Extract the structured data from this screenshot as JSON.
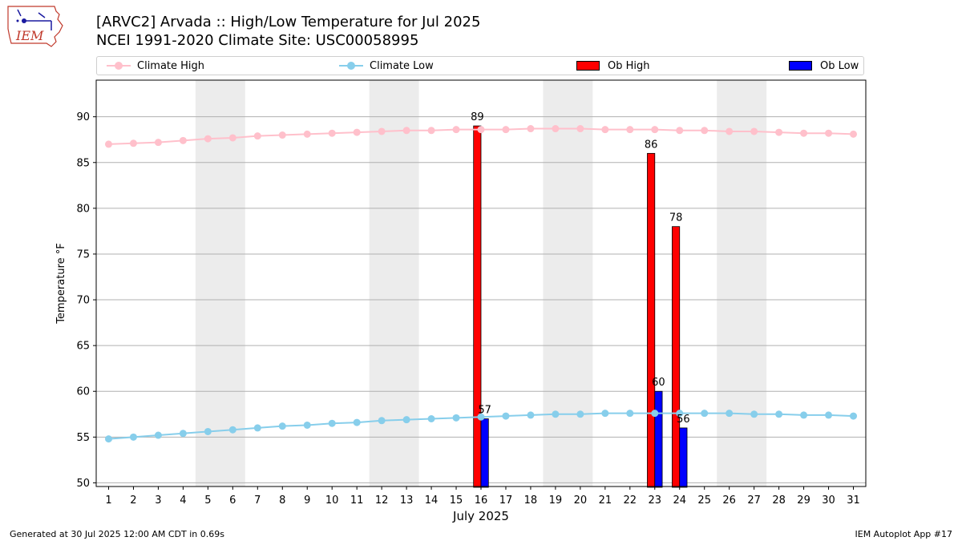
{
  "header": {
    "title_line1": "[ARVC2] Arvada :: High/Low Temperature for Jul 2025",
    "title_line2": "NCEI 1991-2020 Climate Site: USC00058995",
    "logo_text": "IEM"
  },
  "footer": {
    "left": "Generated at 30 Jul 2025 12:00 AM CDT in 0.69s",
    "right": "IEM Autoplot App #17"
  },
  "colors": {
    "climate_high": "#ffc0cb",
    "climate_low": "#87ceeb",
    "ob_high": "#ff0000",
    "ob_low": "#0000ff",
    "weekend_band": "#ececec",
    "grid": "#b0b0b0"
  },
  "chart_data": {
    "type": "bar",
    "xlabel": "July 2025",
    "ylabel": "Temperature °F",
    "xlim": [
      0.5,
      31.5
    ],
    "ylim": [
      49.6,
      94
    ],
    "x": [
      1,
      2,
      3,
      4,
      5,
      6,
      7,
      8,
      9,
      10,
      11,
      12,
      13,
      14,
      15,
      16,
      17,
      18,
      19,
      20,
      21,
      22,
      23,
      24,
      25,
      26,
      27,
      28,
      29,
      30,
      31
    ],
    "x_ticks": [
      "1",
      "2",
      "3",
      "4",
      "5",
      "6",
      "7",
      "8",
      "9",
      "10",
      "11",
      "12",
      "13",
      "14",
      "15",
      "16",
      "17",
      "18",
      "19",
      "20",
      "21",
      "22",
      "23",
      "24",
      "25",
      "26",
      "27",
      "28",
      "29",
      "30",
      "31"
    ],
    "y_ticks": [
      50,
      55,
      60,
      65,
      70,
      75,
      80,
      85,
      90
    ],
    "grid": "horizontal",
    "legend_position": "top",
    "weekend_bands": [
      [
        5,
        6
      ],
      [
        12,
        13
      ],
      [
        19,
        20
      ],
      [
        26,
        27
      ]
    ],
    "series": [
      {
        "name": "Climate High",
        "kind": "line",
        "values": [
          87.0,
          87.1,
          87.2,
          87.4,
          87.6,
          87.7,
          87.9,
          88.0,
          88.1,
          88.2,
          88.3,
          88.4,
          88.5,
          88.5,
          88.6,
          88.6,
          88.6,
          88.7,
          88.7,
          88.7,
          88.6,
          88.6,
          88.6,
          88.5,
          88.5,
          88.4,
          88.4,
          88.3,
          88.2,
          88.2,
          88.1
        ]
      },
      {
        "name": "Climate Low",
        "kind": "line",
        "values": [
          54.8,
          55.0,
          55.2,
          55.4,
          55.6,
          55.8,
          56.0,
          56.2,
          56.3,
          56.5,
          56.6,
          56.8,
          56.9,
          57.0,
          57.1,
          57.2,
          57.3,
          57.4,
          57.5,
          57.5,
          57.6,
          57.6,
          57.6,
          57.6,
          57.6,
          57.6,
          57.5,
          57.5,
          57.4,
          57.4,
          57.3
        ]
      },
      {
        "name": "Ob High",
        "kind": "bar",
        "points": [
          {
            "x": 16,
            "y": 89
          },
          {
            "x": 23,
            "y": 86
          },
          {
            "x": 24,
            "y": 78
          }
        ]
      },
      {
        "name": "Ob Low",
        "kind": "bar",
        "points": [
          {
            "x": 16,
            "y": 57
          },
          {
            "x": 23,
            "y": 60
          },
          {
            "x": 24,
            "y": 56
          }
        ]
      }
    ]
  }
}
